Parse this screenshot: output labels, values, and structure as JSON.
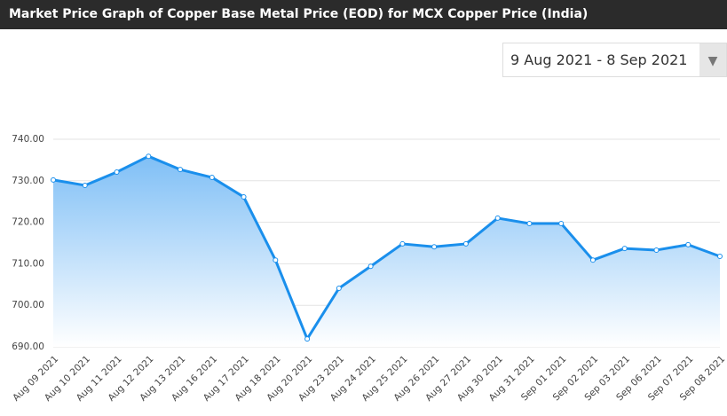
{
  "date_picker": {
    "label": "9 Aug 2021 - 8 Sep 2021"
  },
  "chart_data": {
    "type": "line",
    "title": "Market Price Graph of Copper Base Metal Price (EOD) for MCX Copper Price (India)",
    "categories": [
      "Aug 09 2021",
      "Aug 10 2021",
      "Aug 11 2021",
      "Aug 12 2021",
      "Aug 13 2021",
      "Aug 16 2021",
      "Aug 17 2021",
      "Aug 18 2021",
      "Aug 20 2021",
      "Aug 23 2021",
      "Aug 24 2021",
      "Aug 25 2021",
      "Aug 26 2021",
      "Aug 27 2021",
      "Aug 30 2021",
      "Aug 31 2021",
      "Sep 01 2021",
      "Sep 02 2021",
      "Sep 03 2021",
      "Sep 06 2021",
      "Sep 07 2021",
      "Sep 08 2021"
    ],
    "series": [
      {
        "name": "MCX Copper",
        "color": "#1a8fec",
        "values": [
          730.2,
          728.9,
          732.1,
          735.9,
          732.7,
          730.8,
          726.1,
          710.9,
          691.9,
          704.1,
          709.4,
          714.8,
          714.1,
          714.8,
          721.0,
          719.7,
          719.7,
          710.9,
          713.7,
          713.3,
          714.6,
          711.8
        ]
      }
    ],
    "ylim": [
      690,
      740
    ],
    "yticks": [
      {
        "value": 690,
        "label": "690.00"
      },
      {
        "value": 700,
        "label": "700.00"
      },
      {
        "value": 710,
        "label": "710.00"
      },
      {
        "value": 720,
        "label": "720.00"
      },
      {
        "value": 730,
        "label": "730.00"
      },
      {
        "value": 740,
        "label": "740.00"
      }
    ],
    "grid": true
  }
}
